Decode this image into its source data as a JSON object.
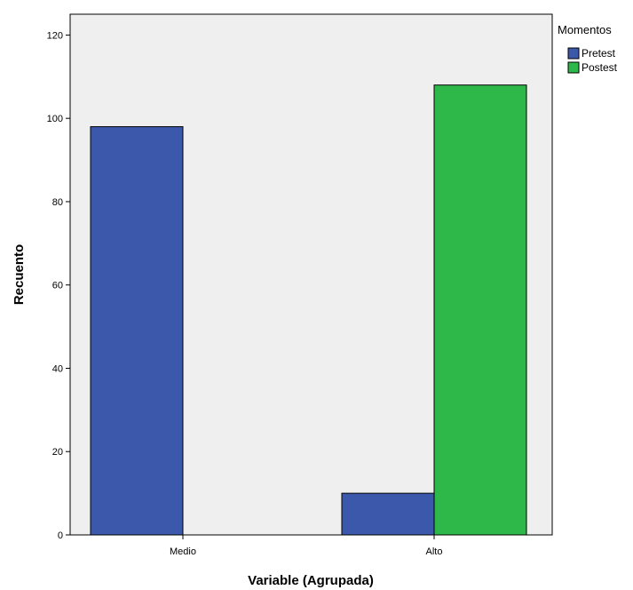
{
  "chart_data": {
    "type": "bar",
    "categories": [
      "Medio",
      "Alto"
    ],
    "series": [
      {
        "name": "Pretest",
        "values": [
          98,
          10
        ]
      },
      {
        "name": "Postest",
        "values": [
          0,
          108
        ]
      }
    ],
    "xlabel": "Variable (Agrupada)",
    "ylabel": "Recuento",
    "ylim": [
      0,
      125
    ],
    "yticks": [
      0,
      20,
      40,
      60,
      80,
      100,
      120
    ],
    "legend_title": "Momentos",
    "legend_position": "top-right outside",
    "grid": false,
    "colors": {
      "plot_background": "#efefef",
      "Pretest": "#3c58ab",
      "Postest": "#2fb84a",
      "outline": "#000000"
    }
  }
}
